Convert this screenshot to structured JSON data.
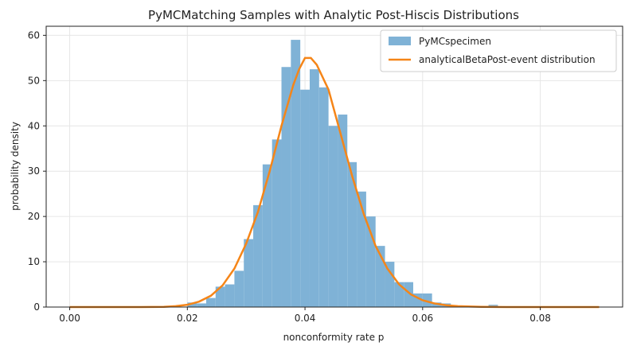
{
  "chart_data": {
    "type": "bar",
    "title": "PyMCMatching Samples with Analytic Post-Hiscis Distributions",
    "xlabel": "nonconformity rate p",
    "ylabel": "probability density",
    "xlim": [
      -0.004,
      0.094
    ],
    "ylim": [
      0,
      62
    ],
    "xticks": [
      "0.00",
      "0.02",
      "0.04",
      "0.06",
      "0.08"
    ],
    "yticks": [
      "0",
      "10",
      "20",
      "30",
      "40",
      "50",
      "60"
    ],
    "xtick_values": [
      0.0,
      0.02,
      0.04,
      0.06,
      0.08
    ],
    "ytick_values": [
      0,
      10,
      20,
      30,
      40,
      50,
      60
    ],
    "grid": true,
    "legend": "top-right",
    "histogram": {
      "name": "PyMCspecimen",
      "color": "#7fb2d6",
      "bin_width": 0.0016,
      "bins": [
        {
          "x0": 0.02,
          "value": 1.0
        },
        {
          "x0": 0.0216,
          "value": 0.8
        },
        {
          "x0": 0.0232,
          "value": 2.0
        },
        {
          "x0": 0.0248,
          "value": 4.5
        },
        {
          "x0": 0.0264,
          "value": 5.0
        },
        {
          "x0": 0.028,
          "value": 8.0
        },
        {
          "x0": 0.0296,
          "value": 15.0
        },
        {
          "x0": 0.0312,
          "value": 22.5
        },
        {
          "x0": 0.0328,
          "value": 31.5
        },
        {
          "x0": 0.0344,
          "value": 37.0
        },
        {
          "x0": 0.036,
          "value": 53.0
        },
        {
          "x0": 0.0376,
          "value": 59.0
        },
        {
          "x0": 0.0392,
          "value": 48.0
        },
        {
          "x0": 0.0408,
          "value": 52.5
        },
        {
          "x0": 0.0424,
          "value": 48.5
        },
        {
          "x0": 0.044,
          "value": 40.0
        },
        {
          "x0": 0.0456,
          "value": 42.5
        },
        {
          "x0": 0.0472,
          "value": 32.0
        },
        {
          "x0": 0.0488,
          "value": 25.5
        },
        {
          "x0": 0.0504,
          "value": 20.0
        },
        {
          "x0": 0.052,
          "value": 13.5
        },
        {
          "x0": 0.0536,
          "value": 10.0
        },
        {
          "x0": 0.0552,
          "value": 5.5
        },
        {
          "x0": 0.0568,
          "value": 5.5
        },
        {
          "x0": 0.0584,
          "value": 3.0
        },
        {
          "x0": 0.06,
          "value": 3.0
        },
        {
          "x0": 0.0616,
          "value": 1.0
        },
        {
          "x0": 0.0632,
          "value": 0.8
        },
        {
          "x0": 0.0648,
          "value": 0.3
        },
        {
          "x0": 0.0712,
          "value": 0.5
        }
      ]
    },
    "curve": {
      "name": "analyticalBetaPost-event distribution",
      "color": "#f58518",
      "points": [
        [
          0.0,
          0.0
        ],
        [
          0.006,
          0.0
        ],
        [
          0.012,
          0.0
        ],
        [
          0.016,
          0.05
        ],
        [
          0.018,
          0.2
        ],
        [
          0.02,
          0.5
        ],
        [
          0.022,
          1.2
        ],
        [
          0.024,
          2.5
        ],
        [
          0.026,
          4.8
        ],
        [
          0.028,
          8.5
        ],
        [
          0.03,
          14.0
        ],
        [
          0.032,
          21.0
        ],
        [
          0.034,
          30.0
        ],
        [
          0.036,
          40.0
        ],
        [
          0.038,
          49.0
        ],
        [
          0.039,
          52.5
        ],
        [
          0.04,
          55.0
        ],
        [
          0.041,
          55.0
        ],
        [
          0.042,
          53.5
        ],
        [
          0.044,
          48.0
        ],
        [
          0.046,
          38.5
        ],
        [
          0.048,
          29.0
        ],
        [
          0.05,
          20.5
        ],
        [
          0.052,
          13.5
        ],
        [
          0.054,
          8.5
        ],
        [
          0.056,
          5.0
        ],
        [
          0.058,
          2.8
        ],
        [
          0.06,
          1.5
        ],
        [
          0.062,
          0.8
        ],
        [
          0.064,
          0.4
        ],
        [
          0.066,
          0.2
        ],
        [
          0.07,
          0.05
        ],
        [
          0.075,
          0.0
        ],
        [
          0.08,
          0.0
        ],
        [
          0.085,
          0.0
        ],
        [
          0.09,
          0.0
        ]
      ]
    }
  }
}
